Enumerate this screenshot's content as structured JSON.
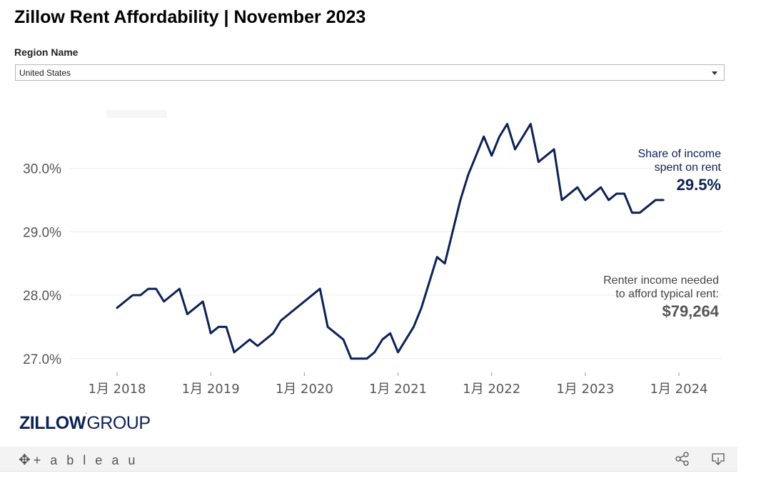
{
  "page": {
    "title": "Zillow Rent Affordability | November 2023",
    "filter_label": "Region Name",
    "filter_value": "United States"
  },
  "annotations": {
    "share_label_1": "Share of income",
    "share_label_2": "spent on rent",
    "share_value": "29.5%",
    "income_label_1": "Renter income needed",
    "income_label_2": "to afford typical rent:",
    "income_value": "$79,264"
  },
  "brand": {
    "logo_bold": "ZILLOW",
    "logo_light": "GROUP",
    "tableau_text": "+ a b l e a u",
    "color": "#0c2155"
  },
  "icons": {
    "share": "share-icon",
    "download": "download-icon",
    "tableau": "tableau-logo-icon"
  },
  "chart_data": {
    "type": "line",
    "title": "",
    "xlabel": "",
    "ylabel": "",
    "ylim": [
      26.8,
      30.9
    ],
    "x_ticks": [
      {
        "label": "1月 2018",
        "x": "2018-01"
      },
      {
        "label": "1月 2019",
        "x": "2019-01"
      },
      {
        "label": "1月 2020",
        "x": "2020-01"
      },
      {
        "label": "1月 2021",
        "x": "2021-01"
      },
      {
        "label": "1月 2022",
        "x": "2022-01"
      },
      {
        "label": "1月 2023",
        "x": "2023-01"
      },
      {
        "label": "1月 2024",
        "x": "2024-01"
      }
    ],
    "y_ticks": [
      {
        "label": "27.0%",
        "value": 27.0
      },
      {
        "label": "28.0%",
        "value": 28.0
      },
      {
        "label": "29.0%",
        "value": 29.0
      },
      {
        "label": "30.0%",
        "value": 30.0
      }
    ],
    "grid": true,
    "line_color": "#0c2155",
    "series": [
      {
        "points": [
          [
            "2018-01",
            27.8
          ],
          [
            "2018-03",
            28.0
          ],
          [
            "2018-04",
            28.0
          ],
          [
            "2018-05",
            28.1
          ],
          [
            "2018-06",
            28.1
          ],
          [
            "2018-07",
            27.9
          ],
          [
            "2018-09",
            28.1
          ],
          [
            "2018-10",
            27.7
          ],
          [
            "2018-12",
            27.9
          ],
          [
            "2019-01",
            27.4
          ],
          [
            "2019-02",
            27.5
          ],
          [
            "2019-03",
            27.5
          ],
          [
            "2019-04",
            27.1
          ],
          [
            "2019-06",
            27.3
          ],
          [
            "2019-07",
            27.2
          ],
          [
            "2019-09",
            27.4
          ],
          [
            "2019-10",
            27.6
          ],
          [
            "2020-03",
            28.1
          ],
          [
            "2020-04",
            27.5
          ],
          [
            "2020-06",
            27.3
          ],
          [
            "2020-07",
            27.0
          ],
          [
            "2020-09",
            27.0
          ],
          [
            "2020-10",
            27.1
          ],
          [
            "2020-11",
            27.3
          ],
          [
            "2020-12",
            27.4
          ],
          [
            "2021-01",
            27.1
          ],
          [
            "2021-03",
            27.5
          ],
          [
            "2021-04",
            27.8
          ],
          [
            "2021-06",
            28.6
          ],
          [
            "2021-07",
            28.5
          ],
          [
            "2021-09",
            29.5
          ],
          [
            "2021-10",
            29.9
          ],
          [
            "2021-12",
            30.5
          ],
          [
            "2022-01",
            30.2
          ],
          [
            "2022-02",
            30.5
          ],
          [
            "2022-03",
            30.7
          ],
          [
            "2022-04",
            30.3
          ],
          [
            "2022-06",
            30.7
          ],
          [
            "2022-07",
            30.1
          ],
          [
            "2022-09",
            30.3
          ],
          [
            "2022-10",
            29.5
          ],
          [
            "2022-12",
            29.7
          ],
          [
            "2023-01",
            29.5
          ],
          [
            "2023-03",
            29.7
          ],
          [
            "2023-04",
            29.5
          ],
          [
            "2023-05",
            29.6
          ],
          [
            "2023-06",
            29.6
          ],
          [
            "2023-07",
            29.3
          ],
          [
            "2023-08",
            29.3
          ],
          [
            "2023-10",
            29.5
          ],
          [
            "2023-11",
            29.5
          ]
        ]
      }
    ]
  }
}
